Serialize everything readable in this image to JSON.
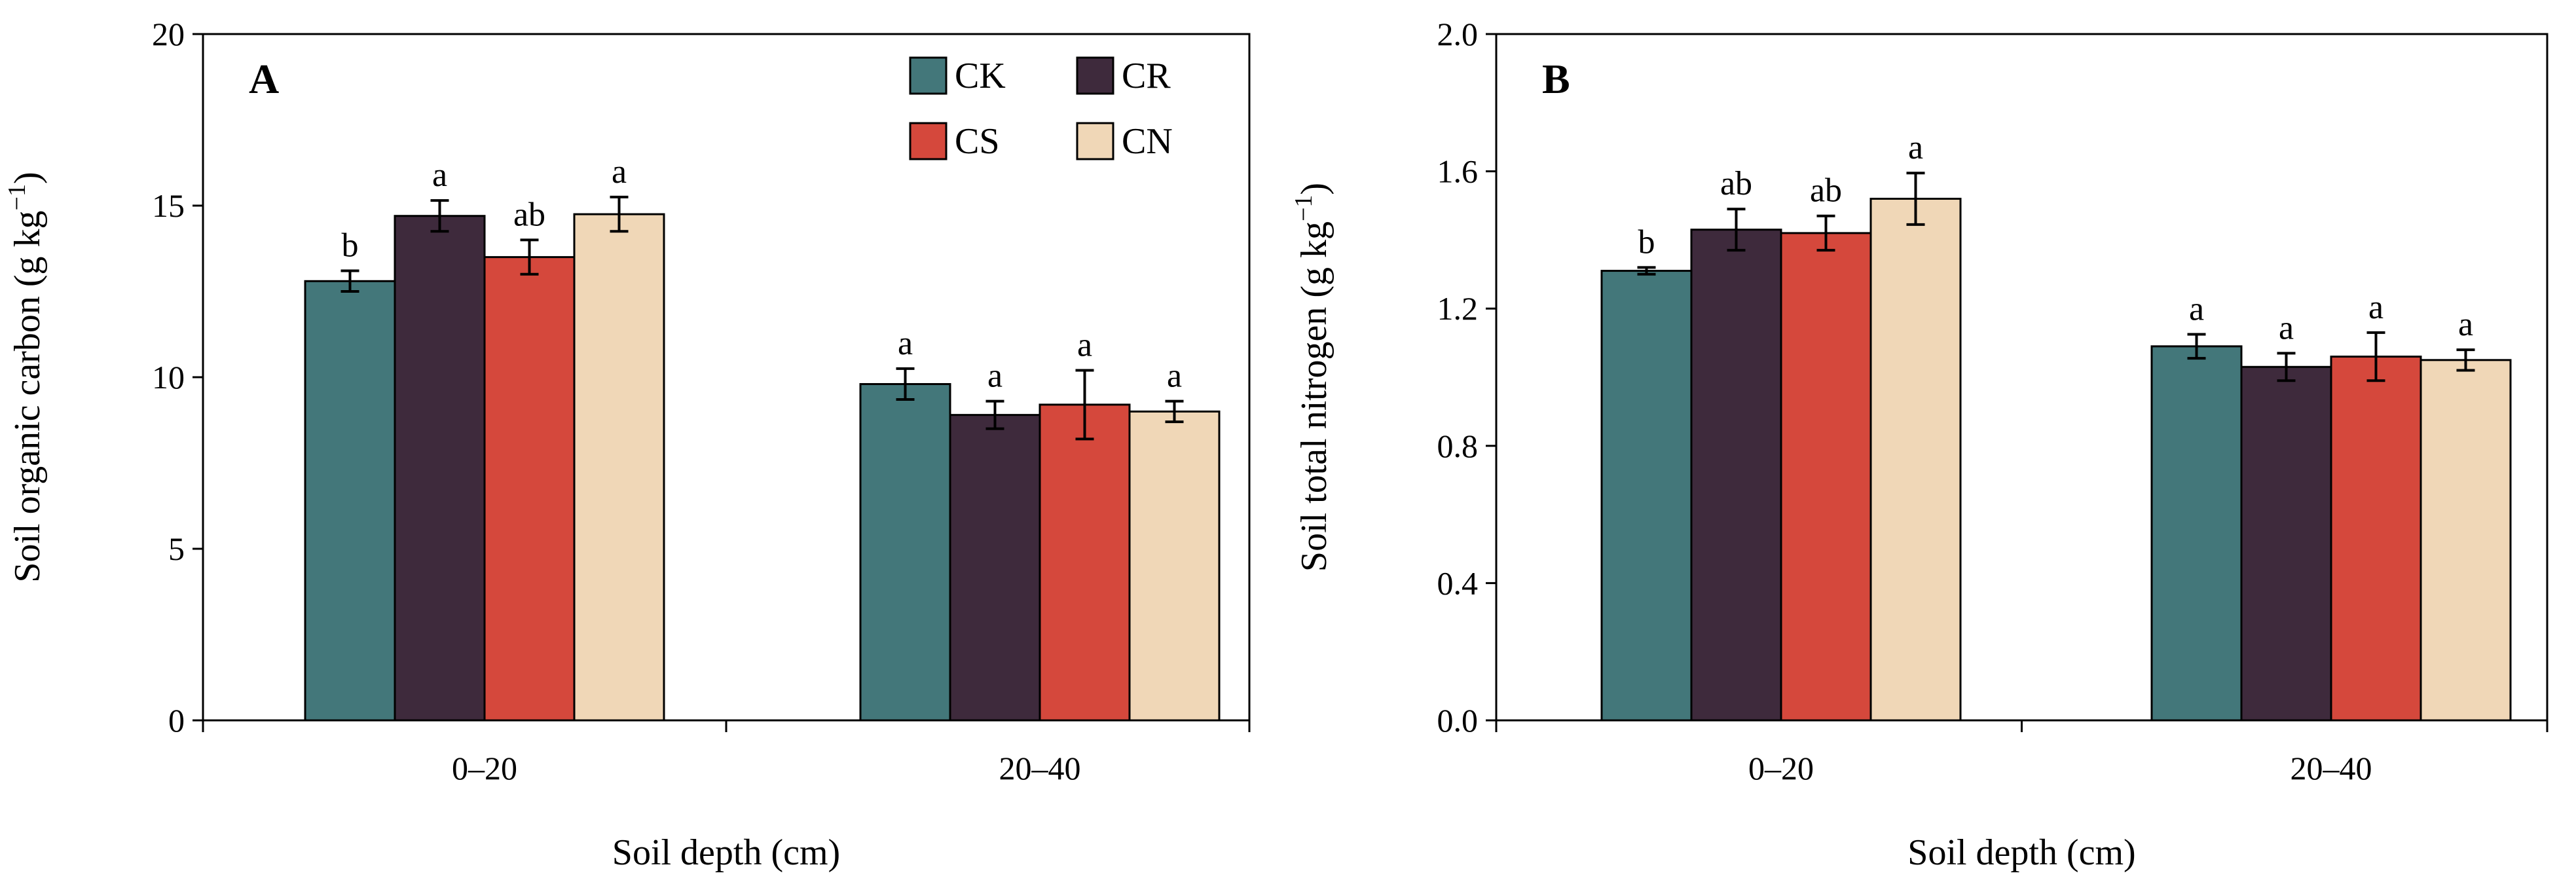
{
  "chart_data": [
    {
      "type": "bar",
      "panel_label": "A",
      "ylabel_main": "Soil organic carbon (g kg",
      "ylabel_sup": "−1",
      "ylabel_close": ")",
      "xlabel": "Soil depth (cm)",
      "ylim": [
        0,
        20
      ],
      "yticks": [
        "0",
        "5",
        "10",
        "15",
        "20"
      ],
      "categories": [
        "0–20",
        "20–40"
      ],
      "grid": false,
      "legend_position": "top-right",
      "series": [
        {
          "name": "CK",
          "color": "#43777a",
          "values": [
            12.8,
            9.8
          ],
          "errors": [
            0.3,
            0.45
          ],
          "letters": [
            "b",
            "a"
          ]
        },
        {
          "name": "CR",
          "color": "#3e2a3c",
          "values": [
            14.7,
            8.9
          ],
          "errors": [
            0.45,
            0.4
          ],
          "letters": [
            "a",
            "a"
          ]
        },
        {
          "name": "CS",
          "color": "#d5483c",
          "values": [
            13.5,
            9.2
          ],
          "errors": [
            0.5,
            1.0
          ],
          "letters": [
            "ab",
            "a"
          ]
        },
        {
          "name": "CN",
          "color": "#f0d7b7",
          "values": [
            14.75,
            9.0
          ],
          "errors": [
            0.5,
            0.3
          ],
          "letters": [
            "a",
            "a"
          ]
        }
      ]
    },
    {
      "type": "bar",
      "panel_label": "B",
      "ylabel_main": "Soil total nitrogen  (g kg",
      "ylabel_sup": "−1",
      "ylabel_close": ")",
      "xlabel": "Soil depth (cm)",
      "ylim": [
        0,
        2.0
      ],
      "yticks": [
        "0.0",
        "0.4",
        "0.8",
        "1.2",
        "1.6",
        "2.0"
      ],
      "categories": [
        "0–20",
        "20–40"
      ],
      "grid": false,
      "series": [
        {
          "name": "CK",
          "color": "#43777a",
          "values": [
            1.31,
            1.09
          ],
          "errors": [
            0.01,
            0.035
          ],
          "letters": [
            "b",
            "a"
          ]
        },
        {
          "name": "CR",
          "color": "#3e2a3c",
          "values": [
            1.43,
            1.03
          ],
          "errors": [
            0.06,
            0.04
          ],
          "letters": [
            "ab",
            "a"
          ]
        },
        {
          "name": "CS",
          "color": "#d5483c",
          "values": [
            1.42,
            1.06
          ],
          "errors": [
            0.05,
            0.07
          ],
          "letters": [
            "ab",
            "a"
          ]
        },
        {
          "name": "CN",
          "color": "#f0d7b7",
          "values": [
            1.52,
            1.05
          ],
          "errors": [
            0.075,
            0.03
          ],
          "letters": [
            "a",
            "a"
          ]
        }
      ]
    }
  ]
}
